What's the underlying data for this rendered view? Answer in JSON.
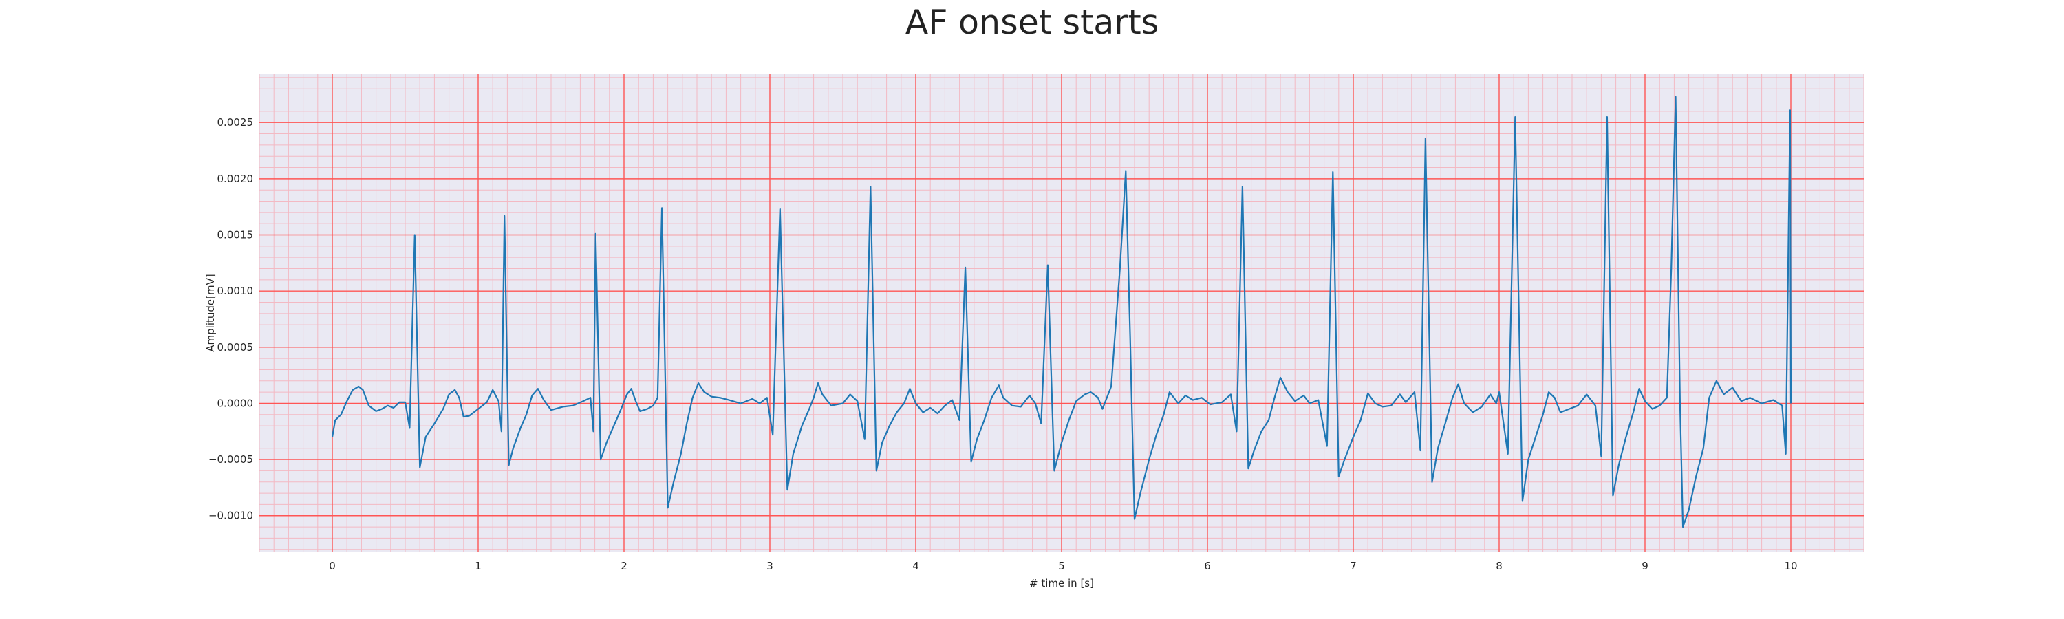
{
  "chart_data": {
    "type": "line",
    "title": "AF onset starts",
    "xlabel": "# time in [s]",
    "ylabel": "Amplitude[mV]",
    "xlim": [
      -0.5,
      10.5
    ],
    "ylim": [
      -0.00132,
      0.00293
    ],
    "x_ticks": [
      "0",
      "1",
      "2",
      "3",
      "4",
      "5",
      "6",
      "7",
      "8",
      "9",
      "10"
    ],
    "y_ticks": [
      "−0.0010",
      "−0.0005",
      "0.0000",
      "0.0005",
      "0.0010",
      "0.0015",
      "0.0020",
      "0.0025"
    ],
    "grid": "major and minor",
    "colors": {
      "line": "#1f77b4",
      "major_grid": "#ff5555",
      "minor_grid": "#f3b9c3",
      "plot_bg": "#eae9f3"
    },
    "series": [
      {
        "points": [
          [
            0,
            -0.0003
          ],
          [
            0.02,
            -0.00015
          ],
          [
            0.06,
            -0.0001
          ],
          [
            0.1,
            2e-05
          ],
          [
            0.14,
            0.00012
          ],
          [
            0.18,
            0.00015
          ],
          [
            0.21,
            0.00012
          ],
          [
            0.25,
            -2e-05
          ],
          [
            0.3,
            -7e-05
          ],
          [
            0.34,
            -5e-05
          ],
          [
            0.38,
            -2e-05
          ],
          [
            0.42,
            -4e-05
          ],
          [
            0.46,
            1e-05
          ],
          [
            0.5,
            1e-05
          ],
          [
            0.53,
            -0.00022
          ],
          [
            0.565,
            0.0015
          ],
          [
            0.6,
            -0.00057
          ],
          [
            0.64,
            -0.0003
          ],
          [
            0.7,
            -0.00018
          ],
          [
            0.76,
            -5e-05
          ],
          [
            0.8,
            8e-05
          ],
          [
            0.84,
            0.00012
          ],
          [
            0.87,
            5e-05
          ],
          [
            0.9,
            -0.00012
          ],
          [
            0.94,
            -0.00011
          ],
          [
            1.0,
            -5e-05
          ],
          [
            1.06,
            1e-05
          ],
          [
            1.1,
            0.00012
          ],
          [
            1.14,
            2e-05
          ],
          [
            1.16,
            -0.00025
          ],
          [
            1.18,
            0.00167
          ],
          [
            1.21,
            -0.00055
          ],
          [
            1.24,
            -0.0004
          ],
          [
            1.29,
            -0.00022
          ],
          [
            1.33,
            -0.0001
          ],
          [
            1.37,
            7e-05
          ],
          [
            1.41,
            0.00013
          ],
          [
            1.45,
            3e-05
          ],
          [
            1.5,
            -6e-05
          ],
          [
            1.58,
            -3e-05
          ],
          [
            1.65,
            -2e-05
          ],
          [
            1.72,
            2e-05
          ],
          [
            1.77,
            5e-05
          ],
          [
            1.79,
            -0.00025
          ],
          [
            1.805,
            0.00151
          ],
          [
            1.84,
            -0.0005
          ],
          [
            1.88,
            -0.00035
          ],
          [
            1.93,
            -0.0002
          ],
          [
            1.98,
            -5e-05
          ],
          [
            2.02,
            8e-05
          ],
          [
            2.05,
            0.00013
          ],
          [
            2.08,
            2e-05
          ],
          [
            2.11,
            -7e-05
          ],
          [
            2.16,
            -5e-05
          ],
          [
            2.2,
            -2e-05
          ],
          [
            2.23,
            5e-05
          ],
          [
            2.26,
            0.00174
          ],
          [
            2.3,
            -0.00093
          ],
          [
            2.34,
            -0.0007
          ],
          [
            2.39,
            -0.00045
          ],
          [
            2.43,
            -0.00018
          ],
          [
            2.47,
            5e-05
          ],
          [
            2.51,
            0.00018
          ],
          [
            2.55,
            0.0001
          ],
          [
            2.6,
            6e-05
          ],
          [
            2.66,
            5e-05
          ],
          [
            2.72,
            3e-05
          ],
          [
            2.8,
            0.0
          ],
          [
            2.88,
            4e-05
          ],
          [
            2.93,
            0.0
          ],
          [
            2.98,
            5e-05
          ],
          [
            3.02,
            -0.00028
          ],
          [
            3.07,
            0.00173
          ],
          [
            3.12,
            -0.00077
          ],
          [
            3.16,
            -0.00045
          ],
          [
            3.22,
            -0.0002
          ],
          [
            3.27,
            -5e-05
          ],
          [
            3.3,
            5e-05
          ],
          [
            3.33,
            0.00018
          ],
          [
            3.36,
            8e-05
          ],
          [
            3.42,
            -2e-05
          ],
          [
            3.5,
            0.0
          ],
          [
            3.55,
            8e-05
          ],
          [
            3.6,
            2e-05
          ],
          [
            3.65,
            -0.00032
          ],
          [
            3.69,
            0.00193
          ],
          [
            3.73,
            -0.0006
          ],
          [
            3.77,
            -0.00035
          ],
          [
            3.82,
            -0.0002
          ],
          [
            3.87,
            -8e-05
          ],
          [
            3.92,
            0.0
          ],
          [
            3.96,
            0.00013
          ],
          [
            4.0,
            0.0
          ],
          [
            4.05,
            -8e-05
          ],
          [
            4.1,
            -4e-05
          ],
          [
            4.15,
            -9e-05
          ],
          [
            4.2,
            -2e-05
          ],
          [
            4.25,
            3e-05
          ],
          [
            4.3,
            -0.00015
          ],
          [
            4.34,
            0.00121
          ],
          [
            4.38,
            -0.00052
          ],
          [
            4.42,
            -0.00032
          ],
          [
            4.47,
            -0.00015
          ],
          [
            4.52,
            5e-05
          ],
          [
            4.57,
            0.00016
          ],
          [
            4.6,
            5e-05
          ],
          [
            4.66,
            -2e-05
          ],
          [
            4.72,
            -3e-05
          ],
          [
            4.78,
            7e-05
          ],
          [
            4.82,
            0.0
          ],
          [
            4.86,
            -0.00018
          ],
          [
            4.905,
            0.00123
          ],
          [
            4.95,
            -0.0006
          ],
          [
            5.0,
            -0.00035
          ],
          [
            5.05,
            -0.00015
          ],
          [
            5.1,
            2e-05
          ],
          [
            5.16,
            8e-05
          ],
          [
            5.2,
            0.0001
          ],
          [
            5.25,
            5e-05
          ],
          [
            5.28,
            -5e-05
          ],
          [
            5.34,
            0.00015
          ],
          [
            5.4,
            0.0012
          ],
          [
            5.44,
            0.00207
          ],
          [
            5.47,
            0.0006
          ],
          [
            5.5,
            -0.00103
          ],
          [
            5.54,
            -0.0008
          ],
          [
            5.6,
            -0.0005
          ],
          [
            5.65,
            -0.00028
          ],
          [
            5.7,
            -0.0001
          ],
          [
            5.74,
            0.0001
          ],
          [
            5.8,
            0.0
          ],
          [
            5.85,
            7e-05
          ],
          [
            5.9,
            3e-05
          ],
          [
            5.96,
            5e-05
          ],
          [
            6.02,
            -1e-05
          ],
          [
            6.1,
            1e-05
          ],
          [
            6.16,
            8e-05
          ],
          [
            6.2,
            -0.00025
          ],
          [
            6.24,
            0.00193
          ],
          [
            6.28,
            -0.00058
          ],
          [
            6.32,
            -0.00042
          ],
          [
            6.37,
            -0.00025
          ],
          [
            6.42,
            -0.00015
          ],
          [
            6.46,
            5e-05
          ],
          [
            6.5,
            0.00023
          ],
          [
            6.55,
            0.0001
          ],
          [
            6.6,
            2e-05
          ],
          [
            6.66,
            7e-05
          ],
          [
            6.7,
            0.0
          ],
          [
            6.76,
            3e-05
          ],
          [
            6.82,
            -0.00038
          ],
          [
            6.86,
            0.00206
          ],
          [
            6.9,
            -0.00065
          ],
          [
            6.94,
            -0.0005
          ],
          [
            7.0,
            -0.0003
          ],
          [
            7.05,
            -0.00015
          ],
          [
            7.1,
            9e-05
          ],
          [
            7.15,
            0.0
          ],
          [
            7.2,
            -3e-05
          ],
          [
            7.26,
            -2e-05
          ],
          [
            7.32,
            8e-05
          ],
          [
            7.36,
            1e-05
          ],
          [
            7.42,
            0.0001
          ],
          [
            7.46,
            -0.00042
          ],
          [
            7.495,
            0.00236
          ],
          [
            7.54,
            -0.0007
          ],
          [
            7.58,
            -0.0004
          ],
          [
            7.63,
            -0.00018
          ],
          [
            7.68,
            5e-05
          ],
          [
            7.72,
            0.00017
          ],
          [
            7.76,
            0.0
          ],
          [
            7.82,
            -8e-05
          ],
          [
            7.88,
            -3e-05
          ],
          [
            7.94,
            8e-05
          ],
          [
            7.98,
            0.0
          ],
          [
            8.0,
            0.0001
          ],
          [
            8.06,
            -0.00045
          ],
          [
            8.11,
            0.00255
          ],
          [
            8.16,
            -0.00087
          ],
          [
            8.2,
            -0.0005
          ],
          [
            8.25,
            -0.0003
          ],
          [
            8.3,
            -0.0001
          ],
          [
            8.34,
            0.0001
          ],
          [
            8.38,
            5e-05
          ],
          [
            8.42,
            -8e-05
          ],
          [
            8.48,
            -5e-05
          ],
          [
            8.54,
            -2e-05
          ],
          [
            8.6,
            8e-05
          ],
          [
            8.66,
            -2e-05
          ],
          [
            8.7,
            -0.00047
          ],
          [
            8.74,
            0.00255
          ],
          [
            8.78,
            -0.00082
          ],
          [
            8.82,
            -0.00055
          ],
          [
            8.87,
            -0.0003
          ],
          [
            8.92,
            -8e-05
          ],
          [
            8.96,
            0.00013
          ],
          [
            9.0,
            2e-05
          ],
          [
            9.05,
            -5e-05
          ],
          [
            9.1,
            -2e-05
          ],
          [
            9.15,
            5e-05
          ],
          [
            9.18,
            0.0012
          ],
          [
            9.21,
            0.00273
          ],
          [
            9.24,
            0.0
          ],
          [
            9.26,
            -0.0011
          ],
          [
            9.3,
            -0.00095
          ],
          [
            9.35,
            -0.00065
          ],
          [
            9.4,
            -0.0004
          ],
          [
            9.44,
            5e-05
          ],
          [
            9.49,
            0.0002
          ],
          [
            9.54,
            8e-05
          ],
          [
            9.6,
            0.00014
          ],
          [
            9.66,
            2e-05
          ],
          [
            9.72,
            5e-05
          ],
          [
            9.8,
            0.0
          ],
          [
            9.88,
            3e-05
          ],
          [
            9.94,
            -2e-05
          ],
          [
            9.965,
            -0.00045
          ],
          [
            9.995,
            0.00261
          ],
          [
            10.0,
            0.0
          ]
        ]
      }
    ]
  }
}
